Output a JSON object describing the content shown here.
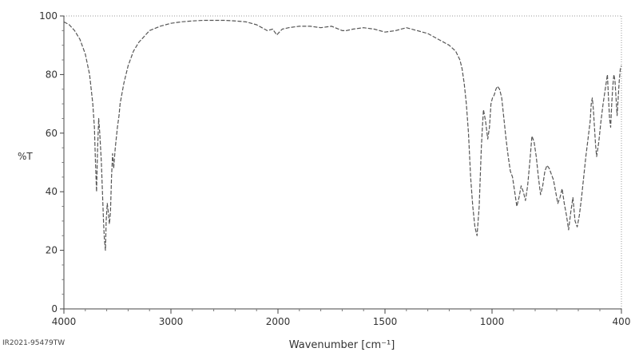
{
  "chart_data": {
    "type": "line",
    "title": "",
    "xlabel": "Wavenumber [cm⁻¹]",
    "ylabel": "%T",
    "xlim": [
      4000,
      400
    ],
    "ylim": [
      0,
      100
    ],
    "x_ticks": [
      4000,
      3000,
      2000,
      1500,
      1000,
      400
    ],
    "y_ticks": [
      0,
      20,
      40,
      60,
      80,
      100
    ],
    "grid": false,
    "footer_id": "IR2021-95479TW",
    "line_color": "#555555",
    "series": [
      {
        "x": [
          4000,
          3950,
          3900,
          3850,
          3800,
          3760,
          3730,
          3715,
          3705,
          3695,
          3685,
          3675,
          3665,
          3650,
          3640,
          3630,
          3622,
          3612,
          3605,
          3595,
          3585,
          3575,
          3565,
          3555,
          3545,
          3535,
          3520,
          3500,
          3485,
          3475,
          3465,
          3455,
          3440,
          3420,
          3400,
          3350,
          3300,
          3200,
          3100,
          3000,
          2900,
          2800,
          2700,
          2600,
          2500,
          2400,
          2300,
          2200,
          2100,
          2050,
          2030,
          2010,
          2000,
          1980,
          1950,
          1900,
          1850,
          1800,
          1750,
          1700,
          1680,
          1650,
          1600,
          1550,
          1500,
          1450,
          1400,
          1350,
          1300,
          1250,
          1200,
          1170,
          1150,
          1140,
          1130,
          1120,
          1110,
          1100,
          1090,
          1080,
          1070,
          1060,
          1055,
          1050,
          1045,
          1040,
          1030,
          1020,
          1012,
          1005,
          998,
          990,
          982,
          975,
          965,
          955,
          945,
          935,
          925,
          915,
          905,
          895,
          885,
          875,
          865,
          855,
          845,
          835,
          825,
          815,
          805,
          795,
          785,
          775,
          765,
          755,
          745,
          735,
          725,
          715,
          705,
          695,
          685,
          675,
          665,
          655,
          645,
          635,
          625,
          615,
          605,
          595,
          585,
          575,
          565,
          555,
          545,
          540,
          535,
          530,
          525,
          520,
          515,
          505,
          495,
          485,
          475,
          465,
          460,
          455,
          450,
          445,
          440,
          435,
          430,
          425,
          420,
          415,
          410,
          405,
          400
        ],
        "y": [
          98,
          97,
          95,
          92,
          87,
          80,
          70,
          62,
          50,
          40,
          55,
          65,
          60,
          50,
          40,
          30,
          24,
          20,
          30,
          36,
          33,
          29,
          33,
          45,
          53,
          48,
          55,
          62,
          66,
          70,
          72,
          74,
          77,
          80,
          83,
          88,
          91,
          95,
          96.5,
          97.5,
          98,
          98.3,
          98.5,
          98.5,
          98.5,
          98.3,
          98,
          97,
          95,
          95.5,
          94.5,
          93.5,
          94,
          95.5,
          96,
          96.5,
          96.5,
          96,
          96.5,
          95,
          95,
          95.5,
          96,
          95.5,
          94.5,
          95,
          96,
          95,
          94,
          92,
          90,
          88,
          85,
          82,
          77,
          70,
          60,
          45,
          35,
          28,
          25,
          35,
          45,
          55,
          62,
          68,
          64,
          58,
          62,
          70,
          72,
          73,
          75,
          76,
          75,
          72,
          65,
          58,
          52,
          47,
          45,
          40,
          35,
          38,
          42,
          40,
          37,
          42,
          50,
          59,
          57,
          52,
          45,
          39,
          42,
          47,
          49,
          48,
          46,
          44,
          40,
          36,
          38,
          41,
          36,
          32,
          27,
          33,
          38,
          30,
          28,
          32,
          38,
          45,
          52,
          58,
          64,
          70,
          72,
          68,
          62,
          56,
          52,
          57,
          64,
          70,
          75,
          80,
          72,
          65,
          62,
          70,
          76,
          80,
          78,
          72,
          66,
          72,
          78,
          82,
          83
        ]
      }
    ]
  }
}
